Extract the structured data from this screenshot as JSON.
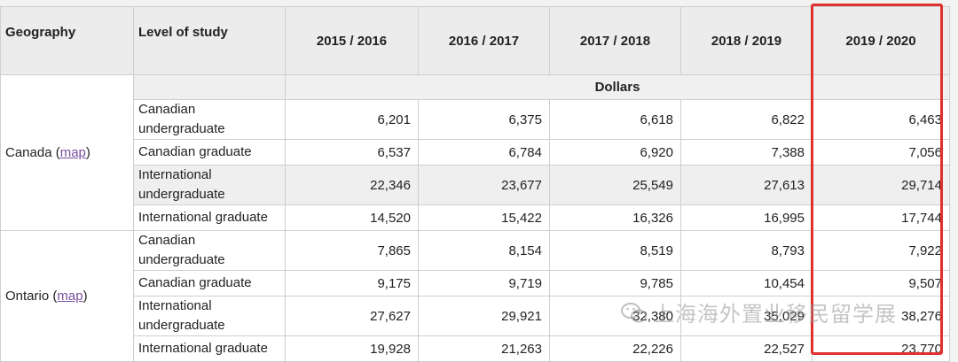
{
  "header": {
    "geography": "Geography",
    "level": "Level of study",
    "years": [
      "2015 / 2016",
      "2016 / 2017",
      "2017 / 2018",
      "2018 / 2019",
      "2019 / 2020"
    ]
  },
  "units": "Dollars",
  "regions": [
    {
      "name": "Canada",
      "map_link": "map",
      "rows": [
        {
          "level": "Canadian undergraduate",
          "values": [
            "6,201",
            "6,375",
            "6,618",
            "6,822",
            "6,463"
          ]
        },
        {
          "level": "Canadian graduate",
          "values": [
            "6,537",
            "6,784",
            "6,920",
            "7,388",
            "7,056"
          ]
        },
        {
          "level": "International undergraduate",
          "values": [
            "22,346",
            "23,677",
            "25,549",
            "27,613",
            "29,714"
          ]
        },
        {
          "level": "International graduate",
          "values": [
            "14,520",
            "15,422",
            "16,326",
            "16,995",
            "17,744"
          ]
        }
      ]
    },
    {
      "name": "Ontario",
      "map_link": "map",
      "rows": [
        {
          "level": "Canadian undergraduate",
          "values": [
            "7,865",
            "8,154",
            "8,519",
            "8,793",
            "7,922"
          ]
        },
        {
          "level": "Canadian graduate",
          "values": [
            "9,175",
            "9,719",
            "9,785",
            "10,454",
            "9,507"
          ]
        },
        {
          "level": "International undergraduate",
          "values": [
            "27,627",
            "29,921",
            "32,380",
            "35,029",
            "38,276"
          ]
        },
        {
          "level": "International graduate",
          "values": [
            "19,928",
            "21,263",
            "22,226",
            "22,527",
            "23,770"
          ]
        }
      ]
    }
  ],
  "watermark": "上海海外置业移民留学展",
  "colors": {
    "highlight": "#e03030",
    "link": "#7a4fa0"
  }
}
